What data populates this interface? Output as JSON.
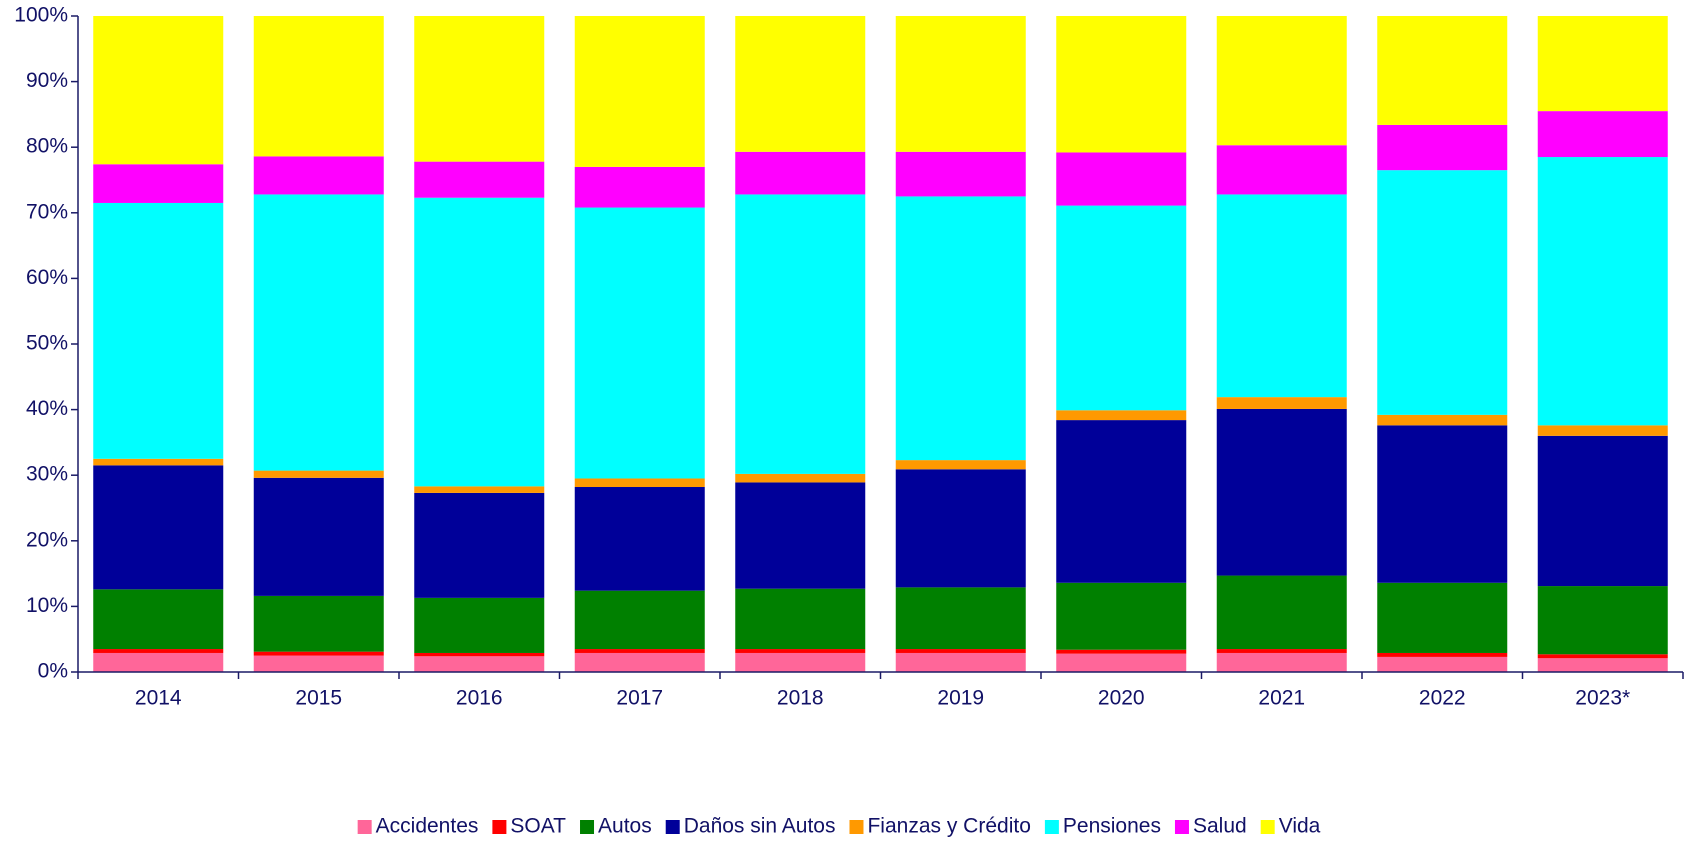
{
  "chart_data": {
    "type": "stacked_bar",
    "categories": [
      "2014",
      "2015",
      "2016",
      "2017",
      "2018",
      "2019",
      "2020",
      "2021",
      "2022",
      "2023*"
    ],
    "series": [
      {
        "name": "Accidentes",
        "color": "#ff6699",
        "values": [
          2.9,
          2.5,
          2.4,
          2.9,
          2.9,
          2.9,
          2.8,
          2.9,
          2.3,
          2.1
        ]
      },
      {
        "name": "SOAT",
        "color": "#ff0000",
        "values": [
          0.6,
          0.6,
          0.5,
          0.6,
          0.6,
          0.6,
          0.6,
          0.6,
          0.6,
          0.6
        ]
      },
      {
        "name": "Autos",
        "color": "#008000",
        "values": [
          9.1,
          8.5,
          8.4,
          8.9,
          9.2,
          9.4,
          10.2,
          11.2,
          10.7,
          10.4
        ]
      },
      {
        "name": "Daños sin Autos",
        "color": "#000099",
        "values": [
          18.9,
          18.0,
          16.0,
          15.8,
          16.2,
          18.0,
          24.8,
          25.4,
          24.0,
          22.9
        ]
      },
      {
        "name": "Fianzas y Crédito",
        "color": "#ff9900",
        "values": [
          1.0,
          1.1,
          1.0,
          1.3,
          1.3,
          1.4,
          1.5,
          1.8,
          1.6,
          1.6
        ]
      },
      {
        "name": "Pensiones",
        "color": "#00ffff",
        "values": [
          39.0,
          42.1,
          44.0,
          41.3,
          42.6,
          40.2,
          31.2,
          30.9,
          37.3,
          40.9
        ]
      },
      {
        "name": "Salud",
        "color": "#ff00ff",
        "values": [
          5.9,
          5.8,
          5.5,
          6.2,
          6.5,
          6.8,
          8.1,
          7.5,
          6.9,
          7.0
        ]
      },
      {
        "name": "Vida",
        "color": "#ffff00",
        "values": [
          22.6,
          21.4,
          22.2,
          23.0,
          20.7,
          20.7,
          20.8,
          19.7,
          16.6,
          14.5
        ]
      }
    ],
    "ylim": [
      0,
      100
    ],
    "yticks": [
      {
        "value": 0,
        "label": "0%"
      },
      {
        "value": 10,
        "label": "10%"
      },
      {
        "value": 20,
        "label": "20%"
      },
      {
        "value": 30,
        "label": "30%"
      },
      {
        "value": 40,
        "label": "40%"
      },
      {
        "value": 50,
        "label": "50%"
      },
      {
        "value": 60,
        "label": "60%"
      },
      {
        "value": 70,
        "label": "70%"
      },
      {
        "value": 80,
        "label": "80%"
      },
      {
        "value": 90,
        "label": "90%"
      },
      {
        "value": 100,
        "label": "100%"
      }
    ],
    "legend": "bottom"
  }
}
